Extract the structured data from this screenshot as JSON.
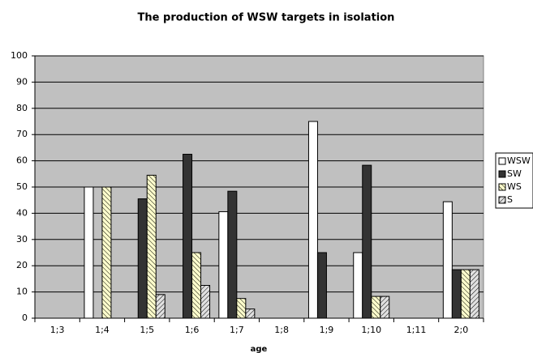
{
  "chart_data": {
    "type": "bar",
    "title": "The production of WSW targets in isolation",
    "x_label": "age",
    "categories": [
      "1;3",
      "1;4",
      "1;5",
      "1;6",
      "1;7",
      "1;8",
      "1;9",
      "1;10",
      "1;11",
      "2;0"
    ],
    "series": [
      {
        "name": "WSW",
        "color": "#ffffff",
        "pattern": "solid",
        "values": [
          null,
          50,
          0,
          0,
          40.6,
          null,
          75,
          25,
          null,
          44.4
        ]
      },
      {
        "name": "SW",
        "color": "#333333",
        "pattern": "solid",
        "values": [
          null,
          0,
          45.5,
          62.5,
          48.4,
          null,
          25,
          58.3,
          null,
          18.5
        ]
      },
      {
        "name": "WS",
        "color": "#ffffcc",
        "pattern": "diagonal",
        "values": [
          null,
          50,
          54.5,
          25,
          7.5,
          null,
          0,
          8.3,
          null,
          18.5
        ]
      },
      {
        "name": "S",
        "color": "#e0e0e0",
        "pattern": "diagonal",
        "values": [
          null,
          0,
          9,
          12.5,
          3.5,
          null,
          0,
          8.3,
          null,
          18.5
        ]
      }
    ],
    "ylim": [
      0,
      100
    ],
    "yticks": [
      0,
      10,
      20,
      30,
      40,
      50,
      60,
      70,
      80,
      90,
      100
    ],
    "grid": true,
    "legend": "right"
  }
}
